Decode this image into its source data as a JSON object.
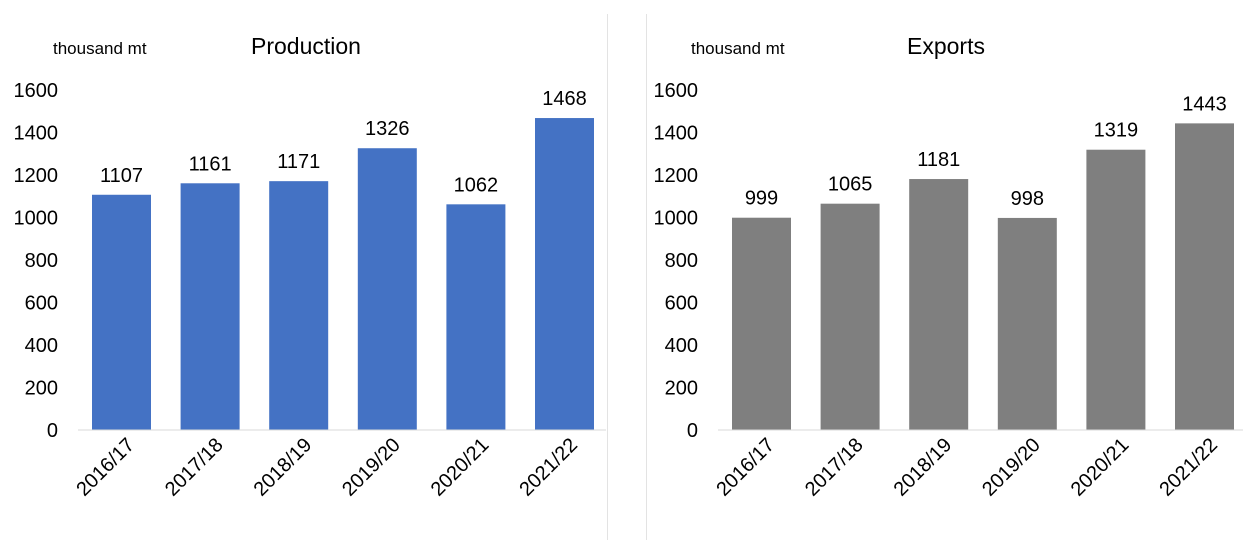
{
  "chart_data": [
    {
      "type": "bar",
      "title": "Production",
      "ylabel": "thousand mt",
      "xlabel": "",
      "categories": [
        "2016/17",
        "2017/18",
        "2018/19",
        "2019/20",
        "2020/21",
        "2021/22"
      ],
      "values": [
        1107,
        1161,
        1171,
        1326,
        1062,
        1468
      ],
      "yticks": [
        0,
        200,
        400,
        600,
        800,
        1000,
        1200,
        1400,
        1600
      ],
      "ylim": [
        0,
        1600
      ],
      "grid": false,
      "legend": "none",
      "bar_color": "#4472C4"
    },
    {
      "type": "bar",
      "title": "Exports",
      "ylabel": "thousand mt",
      "xlabel": "",
      "categories": [
        "2016/17",
        "2017/18",
        "2018/19",
        "2019/20",
        "2020/21",
        "2021/22"
      ],
      "values": [
        999,
        1065,
        1181,
        998,
        1319,
        1443
      ],
      "yticks": [
        0,
        200,
        400,
        600,
        800,
        1000,
        1200,
        1400,
        1600
      ],
      "ylim": [
        0,
        1600
      ],
      "grid": false,
      "legend": "none",
      "bar_color": "#7F7F7F"
    }
  ]
}
